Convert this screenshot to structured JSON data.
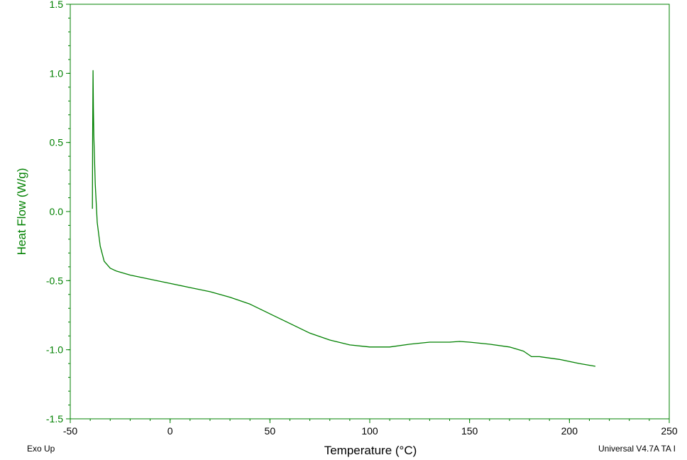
{
  "chart_data": {
    "type": "line",
    "xlabel": "Temperature (°C)",
    "ylabel": "Heat Flow (W/g)",
    "xlim": [
      -50,
      250
    ],
    "ylim": [
      -1.5,
      1.5
    ],
    "x_ticks": [
      -50,
      0,
      50,
      100,
      150,
      200,
      250
    ],
    "y_ticks": [
      1.5,
      1.0,
      0.5,
      0.0,
      -0.5,
      -1.0,
      -1.5
    ],
    "x_tick_labels": [
      "-50",
      "0",
      "50",
      "100",
      "150",
      "200",
      "250"
    ],
    "y_tick_labels": [
      "1.5",
      "1.0",
      "0.5",
      "0.0",
      "-0.5",
      "-1.0",
      "-1.5"
    ],
    "grid": false,
    "series": [
      {
        "x": [
          -38.9,
          -38.8,
          -38.6,
          -38.4,
          -38.2,
          -37.5,
          -36.5,
          -35,
          -33,
          -30,
          -27,
          -20,
          -10,
          0,
          10,
          20,
          30,
          40,
          50,
          60,
          70,
          80,
          90,
          100,
          110,
          120,
          130,
          140,
          145,
          150,
          160,
          170,
          177,
          181,
          185,
          195,
          205,
          213
        ],
        "y": [
          0.02,
          0.5,
          1.02,
          0.75,
          0.55,
          0.2,
          -0.08,
          -0.25,
          -0.36,
          -0.41,
          -0.43,
          -0.46,
          -0.49,
          -0.52,
          -0.55,
          -0.58,
          -0.62,
          -0.67,
          -0.74,
          -0.81,
          -0.88,
          -0.93,
          -0.965,
          -0.98,
          -0.98,
          -0.96,
          -0.945,
          -0.945,
          -0.94,
          -0.945,
          -0.96,
          -0.98,
          -1.01,
          -1.05,
          -1.05,
          -1.07,
          -1.1,
          -1.12
        ]
      }
    ],
    "colors": {
      "axis": "#008000",
      "line": "#008000"
    }
  },
  "footer": {
    "left": "Exo Up",
    "right": "Universal V4.7A TA I"
  }
}
